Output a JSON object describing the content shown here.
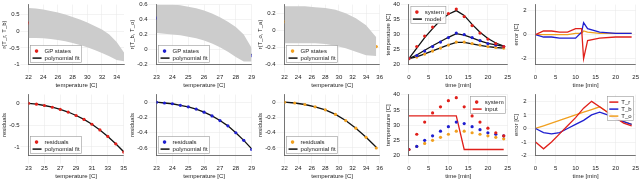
{
  "chart_data": [
    {
      "type": "line",
      "x_label": "temperature [C]",
      "y_label": "r(T_r, T_b)",
      "grid": true,
      "legend": "lower left",
      "xlim": [
        22,
        35
      ],
      "xticks": [
        22,
        24,
        26,
        28,
        30,
        32,
        34
      ],
      "ylim": [
        -1,
        0.8
      ],
      "yticks": [
        -1,
        -0.5,
        0,
        0.5
      ],
      "x": [
        22,
        23,
        24,
        25,
        26,
        27,
        28,
        29,
        30,
        31,
        32,
        33,
        34,
        35
      ],
      "band": {
        "color": "#cccccc",
        "lower": [
          -0.2,
          -0.2,
          -0.21,
          -0.23,
          -0.26,
          -0.3,
          -0.35,
          -0.41,
          -0.48,
          -0.56,
          -0.65,
          -0.75,
          -0.86,
          -0.9
        ],
        "upper": [
          0.7,
          0.68,
          0.65,
          0.61,
          0.56,
          0.5,
          0.43,
          0.35,
          0.26,
          0.16,
          0.05,
          -0.1,
          -0.32,
          -0.64
        ]
      },
      "series": [
        {
          "name": "GP states",
          "color": "#e0201b",
          "marker": "circle",
          "line_style": "none",
          "values": [
            0.25,
            0.24,
            0.22,
            0.19,
            0.15,
            0.1,
            0.04,
            -0.03,
            -0.11,
            -0.2,
            -0.31,
            -0.44,
            -0.6,
            -0.78
          ]
        },
        {
          "name": "polynomial fit",
          "color": "#111111",
          "marker": "none",
          "line_style": "solid",
          "values": [
            0.26,
            0.24,
            0.22,
            0.19,
            0.15,
            0.1,
            0.04,
            -0.03,
            -0.11,
            -0.21,
            -0.32,
            -0.45,
            -0.6,
            -0.77
          ]
        }
      ]
    },
    {
      "type": "line",
      "x_label": "temperature [C]",
      "y_label": "r(T_b, T_o)",
      "grid": true,
      "legend": "lower left",
      "xlim": [
        23,
        29
      ],
      "xticks": [
        23,
        24,
        25,
        26,
        27,
        28,
        29
      ],
      "ylim": [
        -0.2,
        0.6
      ],
      "yticks": [
        -0.2,
        0,
        0.2,
        0.4,
        0.6
      ],
      "x": [
        23,
        23.5,
        24,
        24.5,
        25,
        25.5,
        26,
        26.5,
        27,
        27.5,
        28,
        28.5,
        29
      ],
      "band": {
        "color": "#cccccc",
        "lower": [
          0.22,
          0.21,
          0.2,
          0.19,
          0.17,
          0.15,
          0.12,
          0.08,
          0.03,
          -0.03,
          -0.1,
          -0.16,
          -0.16
        ],
        "upper": [
          0.6,
          0.6,
          0.6,
          0.59,
          0.57,
          0.55,
          0.52,
          0.48,
          0.43,
          0.37,
          0.3,
          0.2,
          0.02
        ]
      },
      "series": [
        {
          "name": "GP states",
          "color": "#1f1fd0",
          "marker": "circle",
          "line_style": "none",
          "values": [
            0.42,
            0.41,
            0.4,
            0.39,
            0.37,
            0.35,
            0.32,
            0.28,
            0.23,
            0.17,
            0.1,
            0.02,
            -0.08
          ]
        },
        {
          "name": "polynomial fit",
          "color": "#111111",
          "marker": "none",
          "line_style": "solid",
          "values": [
            0.42,
            0.41,
            0.4,
            0.38,
            0.37,
            0.34,
            0.31,
            0.28,
            0.23,
            0.17,
            0.1,
            0.02,
            -0.07
          ]
        }
      ]
    },
    {
      "type": "line",
      "x_label": "temperature [C]",
      "y_label": "r(T_o, T_a)",
      "grid": true,
      "legend": "lower left",
      "xlim": [
        22,
        36
      ],
      "xticks": [
        22,
        24,
        26,
        28,
        30,
        32,
        34,
        36
      ],
      "ylim": [
        -0.4,
        0.3
      ],
      "yticks": [
        -0.4,
        -0.2,
        0,
        0.2
      ],
      "x": [
        22,
        23.5,
        25,
        26.5,
        28,
        29.5,
        31,
        32.5,
        34,
        35.5
      ],
      "band": {
        "color": "#cccccc",
        "lower": [
          -0.15,
          -0.15,
          -0.15,
          -0.15,
          -0.16,
          -0.18,
          -0.21,
          -0.25,
          -0.29,
          -0.3
        ],
        "upper": [
          0.28,
          0.28,
          0.28,
          0.27,
          0.26,
          0.24,
          0.2,
          0.14,
          0.06,
          -0.08
        ]
      },
      "series": [
        {
          "name": "GP states",
          "color": "#f0a020",
          "marker": "circle",
          "line_style": "none",
          "values": [
            0.1,
            0.1,
            0.09,
            0.08,
            0.06,
            0.03,
            -0.01,
            -0.06,
            -0.12,
            -0.19
          ]
        },
        {
          "name": "polynomial fit",
          "color": "#111111",
          "marker": "none",
          "line_style": "solid",
          "values": [
            0.1,
            0.1,
            0.09,
            0.08,
            0.06,
            0.03,
            -0.01,
            -0.06,
            -0.12,
            -0.2
          ]
        }
      ]
    },
    {
      "type": "line",
      "x_label": "time [min]",
      "y_label": "temperature [C]",
      "grid": true,
      "legend": "upper left",
      "xlim": [
        0,
        25
      ],
      "xticks": [
        0,
        5,
        10,
        15,
        20,
        25
      ],
      "ylim": [
        20,
        40
      ],
      "yticks": [
        20,
        25,
        30,
        35,
        40
      ],
      "x": [
        0,
        2,
        4,
        6,
        8,
        10,
        12,
        14,
        16,
        18,
        20,
        22,
        24
      ],
      "series": [
        {
          "name": "system",
          "color": "#e0201b",
          "marker": "circle",
          "line_style": "none",
          "values": [
            22,
            26,
            29.5,
            32.5,
            35,
            37,
            38.5,
            36,
            33,
            30.5,
            28.5,
            27,
            26
          ]
        },
        {
          "name": "system",
          "color": "#1f1fd0",
          "marker": "circle",
          "line_style": "none",
          "values": [
            22,
            23,
            24.5,
            26,
            27.5,
            29,
            30.5,
            30,
            29,
            28,
            27,
            26.5,
            26
          ]
        },
        {
          "name": "system",
          "color": "#f0a020",
          "marker": "circle",
          "line_style": "none",
          "values": [
            22,
            22.5,
            23.5,
            24.5,
            25.5,
            26.5,
            27.5,
            27.5,
            27,
            26.5,
            26,
            25.7,
            25.5
          ]
        },
        {
          "name": "model",
          "color": "#111111",
          "marker": "none",
          "line_style": "solid",
          "values": [
            22,
            25.5,
            29,
            32,
            34.8,
            36.8,
            38,
            36.4,
            33.4,
            30.8,
            28.7,
            27.2,
            26.2
          ]
        },
        {
          "name": "model",
          "color": "#111111",
          "marker": "none",
          "line_style": "solid",
          "values": [
            22,
            23.2,
            24.8,
            26.3,
            27.7,
            29.1,
            30.3,
            29.8,
            28.9,
            27.9,
            27.1,
            26.6,
            26.1
          ]
        },
        {
          "name": "model",
          "color": "#111111",
          "marker": "none",
          "line_style": "solid",
          "values": [
            22,
            22.6,
            23.6,
            24.6,
            25.6,
            26.6,
            27.4,
            27.4,
            26.9,
            26.4,
            26,
            25.7,
            25.5
          ]
        }
      ]
    },
    {
      "type": "line",
      "x_label": "time [min]",
      "y_label": "error [C]",
      "grid": true,
      "xlim": [
        0,
        25
      ],
      "xticks": [
        0,
        5,
        10,
        15,
        20,
        25
      ],
      "ylim": [
        -2.5,
        2.5
      ],
      "yticks": [
        -2,
        0,
        2
      ],
      "x": [
        0,
        2,
        4,
        6,
        8,
        10,
        11.5,
        12,
        13,
        16,
        20,
        24
      ],
      "series": [
        {
          "color": "#e0201b",
          "marker": "none",
          "line_style": "solid",
          "values": [
            0,
            0.3,
            0.3,
            0.2,
            0.2,
            0.5,
            0.5,
            -2,
            -0.5,
            -0.3,
            -0.2,
            -0.2
          ]
        },
        {
          "color": "#1f1fd0",
          "marker": "none",
          "line_style": "solid",
          "values": [
            0,
            -0.2,
            -0.2,
            -0.3,
            -0.3,
            -0.3,
            0.2,
            1,
            0.5,
            0.2,
            0.1,
            0.1
          ]
        },
        {
          "color": "#f0a020",
          "marker": "none",
          "line_style": "solid",
          "values": [
            0,
            0,
            0,
            0,
            0,
            0.1,
            0.1,
            0.3,
            0.2,
            0.1,
            0.1,
            0.1
          ]
        }
      ]
    },
    {
      "type": "line",
      "x_label": "temperature [C]",
      "y_label": "residuals",
      "grid": true,
      "legend": "lower left",
      "xlim": [
        23,
        35
      ],
      "xticks": [
        23,
        25,
        27,
        29,
        31,
        33,
        35
      ],
      "ylim": [
        -1.2,
        0.2
      ],
      "yticks": [
        -1,
        -0.5,
        0
      ],
      "x": [
        23,
        24,
        25,
        26,
        27,
        28,
        29,
        30,
        31,
        32,
        33,
        34,
        35
      ],
      "series": [
        {
          "name": "residuals",
          "color": "#e0201b",
          "marker": "circle",
          "line_style": "none",
          "values": [
            0,
            -0.02,
            -0.05,
            -0.09,
            -0.14,
            -0.2,
            -0.28,
            -0.37,
            -0.48,
            -0.61,
            -0.76,
            -0.93,
            -1.12
          ]
        },
        {
          "name": "polynomial fit",
          "color": "#111111",
          "marker": "none",
          "line_style": "solid",
          "values": [
            0,
            -0.02,
            -0.05,
            -0.09,
            -0.14,
            -0.2,
            -0.28,
            -0.37,
            -0.48,
            -0.61,
            -0.76,
            -0.93,
            -1.11
          ]
        }
      ]
    },
    {
      "type": "line",
      "x_label": "temperature [C]",
      "y_label": "residuals",
      "grid": true,
      "legend": "lower left",
      "xlim": [
        23,
        29
      ],
      "xticks": [
        23,
        24,
        25,
        26,
        27,
        28,
        29
      ],
      "ylim": [
        -0.7,
        0.1
      ],
      "yticks": [
        -0.6,
        -0.4,
        -0.2,
        0
      ],
      "x": [
        23,
        23.5,
        24,
        24.5,
        25,
        25.5,
        26,
        26.5,
        27,
        27.5,
        28,
        28.5,
        29
      ],
      "series": [
        {
          "name": "residuals",
          "color": "#1f1fd0",
          "marker": "circle",
          "line_style": "none",
          "values": [
            0,
            -0.01,
            -0.02,
            -0.04,
            -0.06,
            -0.09,
            -0.13,
            -0.18,
            -0.24,
            -0.31,
            -0.4,
            -0.5,
            -0.62
          ]
        },
        {
          "name": "polynomial fit",
          "color": "#111111",
          "marker": "none",
          "line_style": "solid",
          "values": [
            0,
            -0.01,
            -0.02,
            -0.04,
            -0.06,
            -0.09,
            -0.13,
            -0.18,
            -0.24,
            -0.31,
            -0.4,
            -0.5,
            -0.61
          ]
        }
      ]
    },
    {
      "type": "line",
      "x_label": "temperature [C]",
      "y_label": "residuals",
      "grid": true,
      "legend": "lower left",
      "xlim": [
        22,
        36
      ],
      "xticks": [
        22,
        24,
        26,
        28,
        30,
        32,
        34,
        36
      ],
      "ylim": [
        -0.7,
        0.1
      ],
      "yticks": [
        -0.6,
        -0.4,
        -0.2,
        0
      ],
      "x": [
        22,
        23.5,
        25,
        26.5,
        28,
        29.5,
        31,
        32.5,
        34,
        35.5
      ],
      "series": [
        {
          "name": "residuals",
          "color": "#f0a020",
          "marker": "circle",
          "line_style": "none",
          "values": [
            0,
            -0.01,
            -0.03,
            -0.06,
            -0.1,
            -0.16,
            -0.24,
            -0.34,
            -0.46,
            -0.6
          ]
        },
        {
          "name": "polynomial fit",
          "color": "#111111",
          "marker": "none",
          "line_style": "solid",
          "values": [
            0,
            -0.01,
            -0.03,
            -0.06,
            -0.1,
            -0.16,
            -0.24,
            -0.34,
            -0.46,
            -0.59
          ]
        }
      ]
    },
    {
      "type": "line",
      "x_label": "time [min]",
      "y_label": "temperature [C]",
      "grid": true,
      "legend": "upper right",
      "xlim": [
        0,
        25
      ],
      "xticks": [
        0,
        5,
        10,
        15,
        20,
        25
      ],
      "ylim": [
        20,
        40
      ],
      "yticks": [
        20,
        25,
        30,
        35,
        40
      ],
      "x": [
        0,
        2,
        4,
        6,
        8,
        10,
        12,
        14,
        16,
        18,
        20,
        22,
        24
      ],
      "series": [
        {
          "name": "system",
          "color": "#e0201b",
          "marker": "circle",
          "line_style": "none",
          "values": [
            22,
            27,
            31,
            34,
            36,
            38,
            39,
            36,
            33,
            31,
            29,
            27.5,
            26.5
          ]
        },
        {
          "name": "system",
          "color": "#1f1fd0",
          "marker": "circle",
          "line_style": "none",
          "values": [
            22,
            23,
            25,
            26.5,
            28,
            29.5,
            31,
            30.5,
            29.5,
            28.5,
            27.5,
            27,
            26.5
          ]
        },
        {
          "name": "system",
          "color": "#f0a020",
          "marker": "circle",
          "line_style": "none",
          "values": [
            22,
            23,
            24,
            25,
            26,
            27,
            28,
            28,
            27.5,
            27,
            26.5,
            26,
            25.5
          ]
        },
        {
          "name": "input",
          "color": "#e0201b",
          "marker": "none",
          "line_style": "solid",
          "values": [
            33,
            33,
            33,
            33,
            33,
            33,
            33,
            22,
            22,
            22,
            22,
            22,
            22
          ]
        }
      ]
    },
    {
      "type": "line",
      "x_label": "time [min]",
      "y_label": "error [C]",
      "grid": true,
      "legend": "upper right",
      "xlim": [
        0,
        25
      ],
      "xticks": [
        0,
        5,
        10,
        15,
        20,
        25
      ],
      "ylim": [
        -2,
        2.5
      ],
      "yticks": [
        -2,
        -1,
        0,
        1,
        2
      ],
      "x": [
        0,
        2,
        4,
        6,
        8,
        10,
        12,
        14,
        16,
        18,
        20,
        22,
        24
      ],
      "series": [
        {
          "name": "T_r",
          "color": "#e0201b",
          "marker": "none",
          "line_style": "solid",
          "values": [
            -1,
            -1.5,
            -1,
            -0.4,
            0.2,
            0.8,
            1.5,
            2,
            1.6,
            1.2,
            0.8,
            0.4,
            0.2
          ]
        },
        {
          "name": "T_b",
          "color": "#1f1fd0",
          "marker": "none",
          "line_style": "solid",
          "values": [
            0,
            -0.3,
            -0.4,
            -0.3,
            0,
            0.3,
            0.6,
            1,
            1.2,
            1,
            0.7,
            0.5,
            0.3
          ]
        },
        {
          "name": "T_o",
          "color": "#f0a020",
          "marker": "none",
          "line_style": "solid",
          "values": [
            0,
            0.2,
            0.4,
            0.6,
            0.8,
            1,
            1.2,
            1.4,
            1.6,
            1.2,
            0.8,
            0.5,
            0.3
          ]
        }
      ]
    }
  ]
}
